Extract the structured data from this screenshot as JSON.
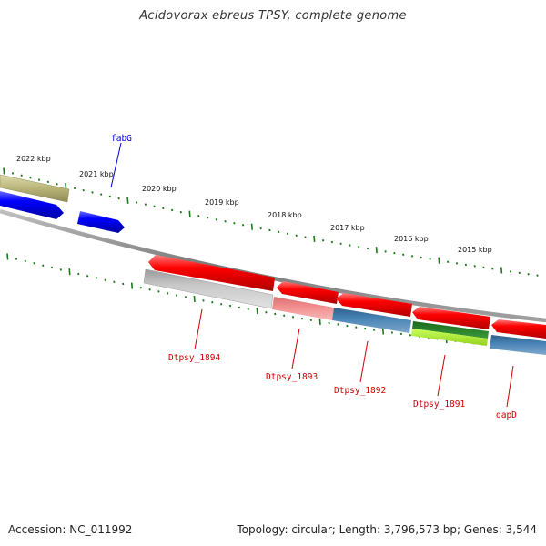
{
  "title": "Acidovorax ebreus TPSY, complete genome",
  "footer": {
    "accession": "Accession: NC_011992",
    "summary": "Topology: circular; Length: 3,796,573 bp; Genes: 3,544"
  },
  "scale_labels": [
    "2022 kbp",
    "2021 kbp",
    "2020 kbp",
    "2019 kbp",
    "2018 kbp",
    "2017 kbp",
    "2016 kbp",
    "2015 kbp"
  ],
  "gene_labels": [
    {
      "name": "fabG",
      "color": "#0000cc"
    },
    {
      "name": "Dtpsy_1894",
      "color": "#cc0000"
    },
    {
      "name": "Dtpsy_1893",
      "color": "#cc0000"
    },
    {
      "name": "Dtpsy_1892",
      "color": "#cc0000"
    },
    {
      "name": "Dtpsy_1891",
      "color": "#cc0000"
    },
    {
      "name": "dapD",
      "color": "#cc0000"
    }
  ],
  "colors": {
    "backbone": "#8a8a8a",
    "tick": "#1a7a1a",
    "forward_cds": "#0000ee",
    "reverse_cds": "#ee0000",
    "olive_feature": "#b8b478",
    "grey_feature": "#bfbfbf",
    "pink_feature": "#f08c8c",
    "steelblue_feature": "#4682b4",
    "green_feature": "#2e8b2e",
    "lime_feature": "#b4f03c"
  }
}
